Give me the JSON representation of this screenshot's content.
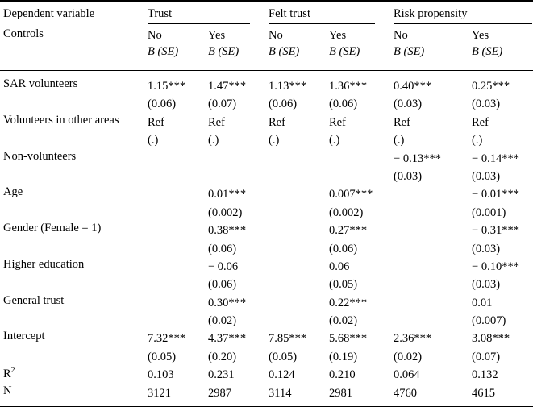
{
  "page": {
    "background_color": "#ffffff",
    "text_color": "#000000",
    "rule_color": "#000000"
  },
  "table": {
    "header": {
      "dependent_variable_label": "Dependent variable",
      "controls_label": "Controls",
      "groups": [
        {
          "label": "Trust"
        },
        {
          "label": "Felt trust"
        },
        {
          "label": "Risk propensity"
        }
      ],
      "subcol_labels": [
        "No",
        "Yes",
        "No",
        "Yes",
        "No",
        "Yes"
      ],
      "stat_label": "B (SE)"
    },
    "rows": [
      {
        "label": "SAR volunteers",
        "est": [
          "1.15***",
          "1.47***",
          "1.13***",
          "1.36***",
          "0.40***",
          "0.25***"
        ],
        "se": [
          "(0.06)",
          "(0.07)",
          "(0.06)",
          "(0.06)",
          "(0.03)",
          "(0.03)"
        ]
      },
      {
        "label": "Volunteers in other areas",
        "est": [
          "Ref",
          "Ref",
          "Ref",
          "Ref",
          "Ref",
          "Ref"
        ],
        "se": [
          "(.)",
          "(.)",
          "(.)",
          "(.)",
          "(.)",
          "(.)"
        ]
      },
      {
        "label": "Non-volunteers",
        "est": [
          "",
          "",
          "",
          "",
          "− 0.13***",
          "− 0.14***"
        ],
        "se": [
          "",
          "",
          "",
          "",
          "(0.03)",
          "(0.03)"
        ]
      },
      {
        "label": "Age",
        "est": [
          "",
          "0.01***",
          "",
          "0.007***",
          "",
          "− 0.01***"
        ],
        "se": [
          "",
          "(0.002)",
          "",
          "(0.002)",
          "",
          "(0.001)"
        ]
      },
      {
        "label": "Gender (Female = 1)",
        "est": [
          "",
          "0.38***",
          "",
          "0.27***",
          "",
          "− 0.31***"
        ],
        "se": [
          "",
          "(0.06)",
          "",
          "(0.06)",
          "",
          "(0.03)"
        ]
      },
      {
        "label": "Higher education",
        "est": [
          "",
          "− 0.06",
          "",
          "0.06",
          "",
          "− 0.10***"
        ],
        "se": [
          "",
          "(0.06)",
          "",
          "(0.05)",
          "",
          "(0.03)"
        ]
      },
      {
        "label": "General trust",
        "est": [
          "",
          "0.30***",
          "",
          "0.22***",
          "",
          "0.01"
        ],
        "se": [
          "",
          "(0.02)",
          "",
          "(0.02)",
          "",
          "(0.007)"
        ]
      },
      {
        "label": "Intercept",
        "est": [
          "7.32***",
          "4.37***",
          "7.85***",
          "5.68***",
          "2.36***",
          "3.08***"
        ],
        "se": [
          "(0.05)",
          "(0.20)",
          "(0.05)",
          "(0.19)",
          "(0.02)",
          "(0.07)"
        ]
      },
      {
        "label": "R",
        "sup": "2",
        "est": [
          "0.103",
          "0.231",
          "0.124",
          "0.210",
          "0.064",
          "0.132"
        ]
      },
      {
        "label": "N",
        "est": [
          "3121",
          "2987",
          "3114",
          "2981",
          "4760",
          "4615"
        ]
      }
    ]
  }
}
